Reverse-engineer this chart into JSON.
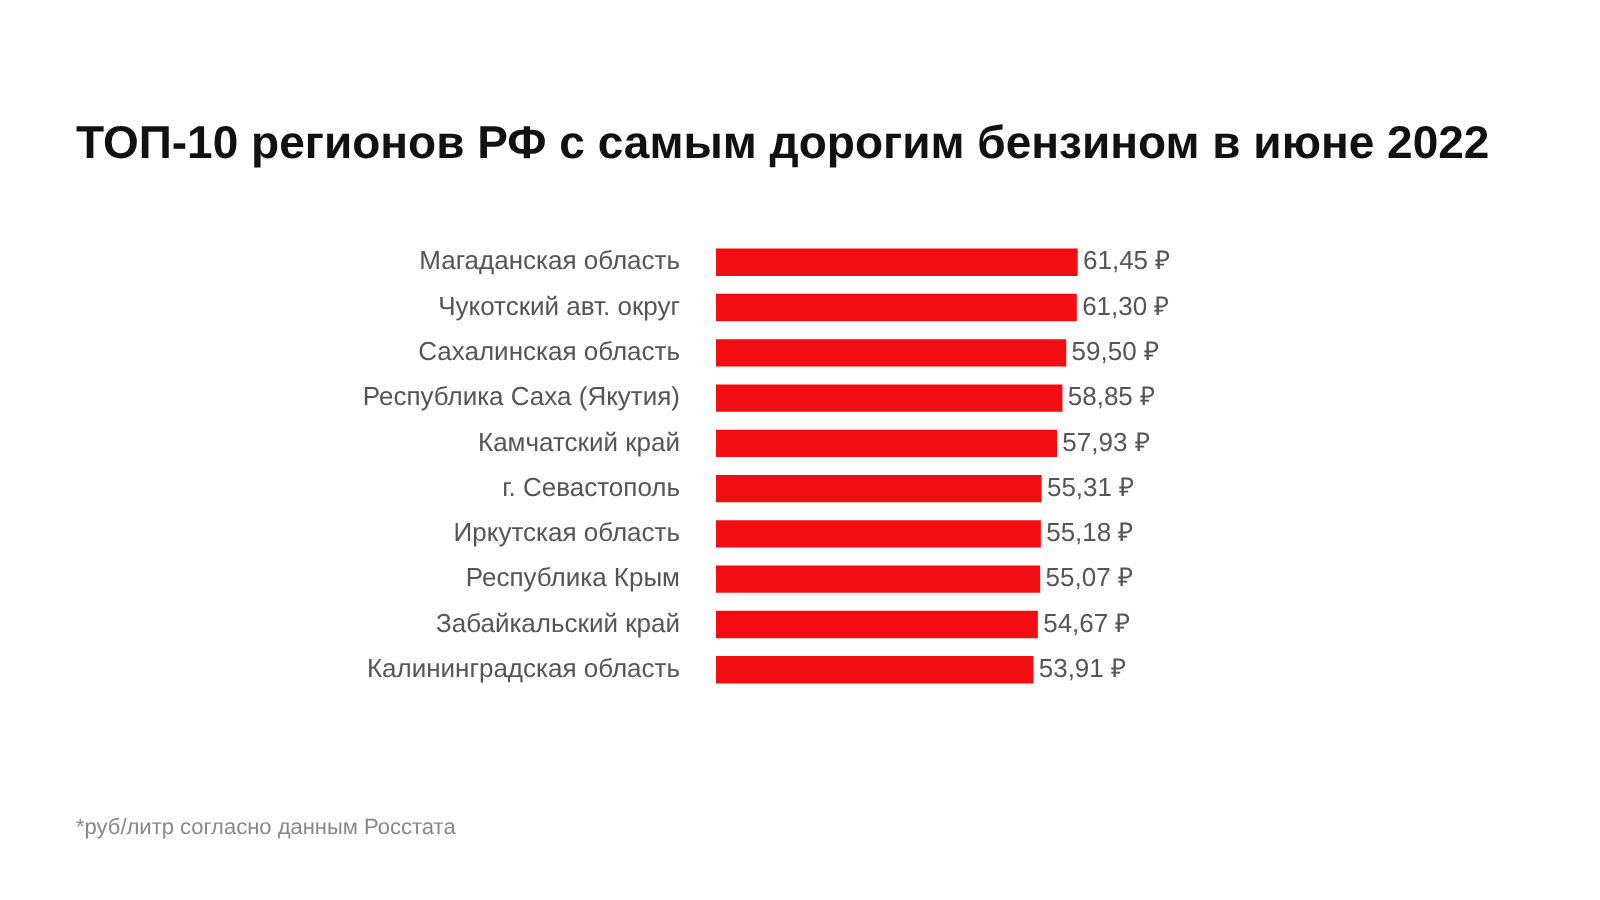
{
  "chart_data": {
    "type": "bar",
    "orientation": "horizontal",
    "title": "ТОП-10 регионов РФ с самым дорогим бензином в июне 2022",
    "categories": [
      "Магаданская область",
      "Чукотский авт. округ",
      "Сахалинская область",
      "Республика Саха (Якутия)",
      "Камчатский край",
      "г. Севастополь",
      "Иркутская область",
      "Республика Крым",
      "Забайкальский край",
      "Калининградская область"
    ],
    "values": [
      61.45,
      61.3,
      59.5,
      58.85,
      57.93,
      55.31,
      55.18,
      55.07,
      54.67,
      53.91
    ],
    "value_labels": [
      "61,45 ₽",
      "61,30 ₽",
      "59,50 ₽",
      "58,85 ₽",
      "57,93 ₽",
      "55,31 ₽",
      "55,18 ₽",
      "55,07 ₽",
      "54,67 ₽",
      "53,91 ₽"
    ],
    "color": "#f20d12",
    "tick_labels": "y",
    "annotations": [
      "*руб/литр согласно данным Росстата"
    ]
  }
}
